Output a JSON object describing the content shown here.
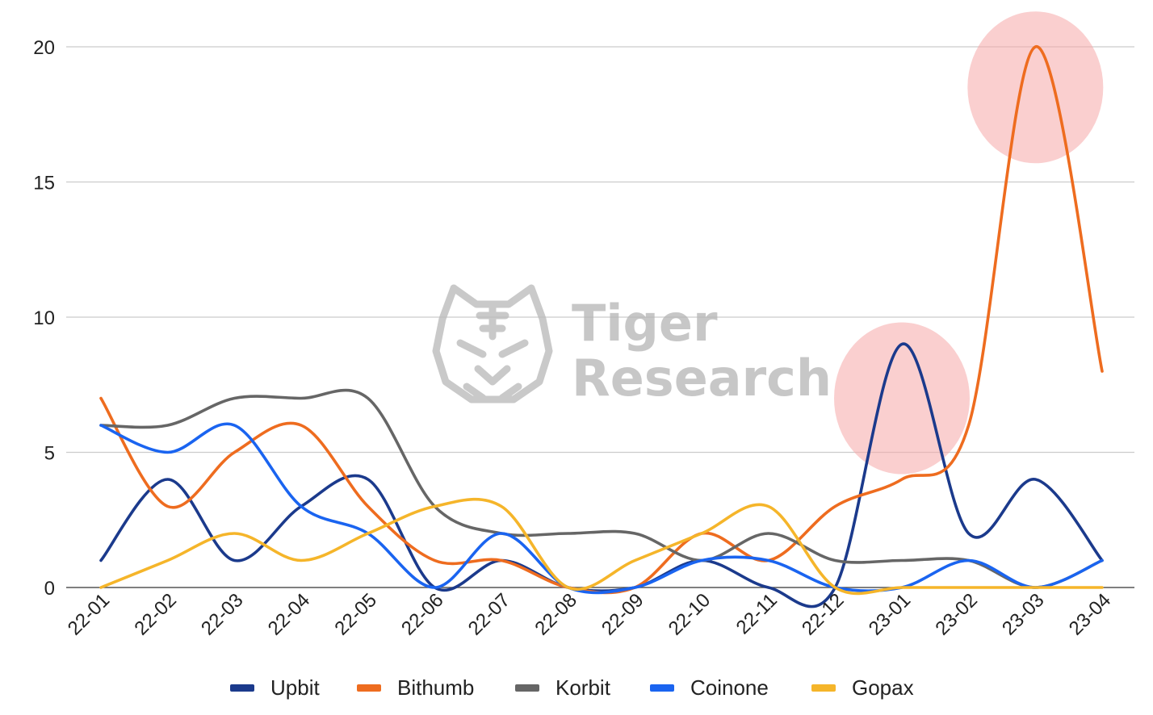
{
  "chart_data": {
    "type": "line",
    "smooth": true,
    "categories": [
      "22-01",
      "22-02",
      "22-03",
      "22-04",
      "22-05",
      "22-06",
      "22-07",
      "22-08",
      "22-09",
      "22-10",
      "22-11",
      "22-12",
      "23-01",
      "23-02",
      "23-03",
      "23-04"
    ],
    "ylim": [
      0,
      20
    ],
    "yticks": [
      0,
      5,
      10,
      15,
      20
    ],
    "grid": true,
    "legend_position": "bottom",
    "series": [
      {
        "name": "Upbit",
        "color": "#1b3a8c",
        "values": [
          1,
          4,
          1,
          3,
          4,
          0,
          1,
          0,
          0,
          1,
          0,
          0,
          9,
          2,
          4,
          1
        ]
      },
      {
        "name": "Bithumb",
        "color": "#ee6c1f",
        "values": [
          7,
          3,
          5,
          6,
          3,
          1,
          1,
          0,
          0,
          2,
          1,
          3,
          4,
          6,
          20,
          8
        ]
      },
      {
        "name": "Korbit",
        "color": "#666666",
        "values": [
          6,
          6,
          7,
          7,
          7,
          3,
          2,
          2,
          2,
          1,
          2,
          1,
          1,
          1,
          0,
          1
        ]
      },
      {
        "name": "Coinone",
        "color": "#1a64f0",
        "values": [
          6,
          5,
          6,
          3,
          2,
          0,
          2,
          0,
          0,
          1,
          1,
          0,
          0,
          1,
          0,
          1
        ]
      },
      {
        "name": "Gopax",
        "color": "#f5b52a",
        "values": [
          0,
          1,
          2,
          1,
          2,
          3,
          3,
          0,
          1,
          2,
          3,
          0,
          0,
          0,
          0,
          0
        ]
      }
    ],
    "highlights": [
      {
        "category": "23-01",
        "value": 7,
        "color": "#f6a8a8"
      },
      {
        "category": "23-03",
        "value": 18.5,
        "color": "#f6a8a8"
      }
    ]
  },
  "watermark": {
    "line1": "Tiger",
    "line2": "Research",
    "icon": "tiger-head-icon"
  }
}
